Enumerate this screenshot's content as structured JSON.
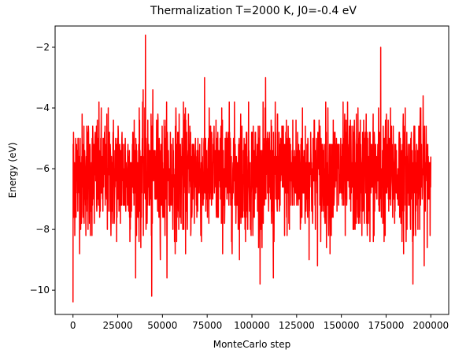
{
  "chart_data": {
    "type": "line",
    "title": "Thermalization T=2000 K, J0=-0.4 eV",
    "xlabel": "MonteCarlo step",
    "ylabel": "Energy (eV)",
    "xlim": [
      -10000,
      210000
    ],
    "ylim": [
      -10.8,
      -1.3
    ],
    "xticks": [
      0,
      25000,
      50000,
      75000,
      100000,
      125000,
      150000,
      175000,
      200000
    ],
    "yticks": [
      -10,
      -8,
      -6,
      -4,
      -2
    ],
    "ytick_labels": [
      "−10",
      "−8",
      "−6",
      "−4",
      "−2"
    ],
    "grid": false,
    "series": [
      {
        "color": "#ff0000",
        "x_range": [
          0,
          200000
        ],
        "n_points": 2000,
        "mean": -6.2,
        "std": 1.0,
        "min": -10.4,
        "max": -1.6,
        "values_noted": [
          {
            "x": 0,
            "y": -10.4
          },
          {
            "x": 500,
            "y": -7.6
          },
          {
            "x": 1500,
            "y": -5.0
          },
          {
            "x": 40500,
            "y": -1.6
          },
          {
            "x": 44000,
            "y": -10.2
          },
          {
            "x": 112000,
            "y": -9.6
          },
          {
            "x": 172000,
            "y": -2.0
          },
          {
            "x": 190000,
            "y": -9.8
          },
          {
            "x": 200000,
            "y": -5.6
          }
        ]
      }
    ]
  }
}
